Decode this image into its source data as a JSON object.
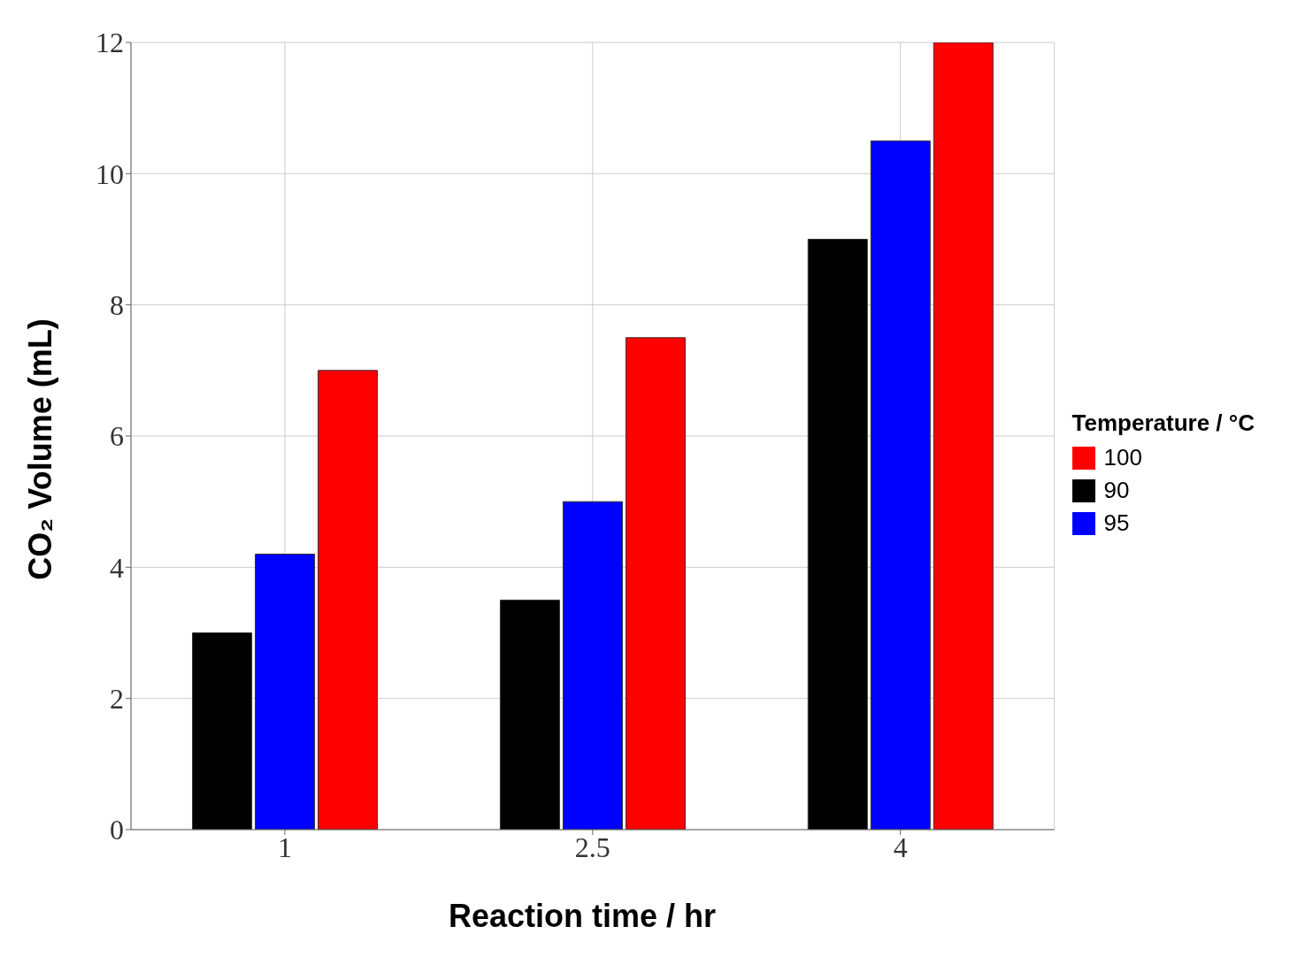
{
  "chart_data": {
    "type": "bar",
    "xlabel": "Reaction time / hr",
    "ylabel": "CO₂ Volume (mL)",
    "legend_title": "Temperature / °C",
    "categories": [
      "1",
      "2.5",
      "4"
    ],
    "series": [
      {
        "name": "90",
        "color": "#000000",
        "values": [
          3.0,
          3.5,
          9.0
        ]
      },
      {
        "name": "95",
        "color": "#0000ff",
        "values": [
          4.2,
          5.0,
          10.5
        ]
      },
      {
        "name": "100",
        "color": "#ff0000",
        "values": [
          7.0,
          7.5,
          12.0
        ]
      }
    ],
    "ylim": [
      0,
      12
    ],
    "yticks": [
      0,
      2,
      4,
      6,
      8,
      10,
      12
    ],
    "grid": true,
    "legend": "right"
  }
}
